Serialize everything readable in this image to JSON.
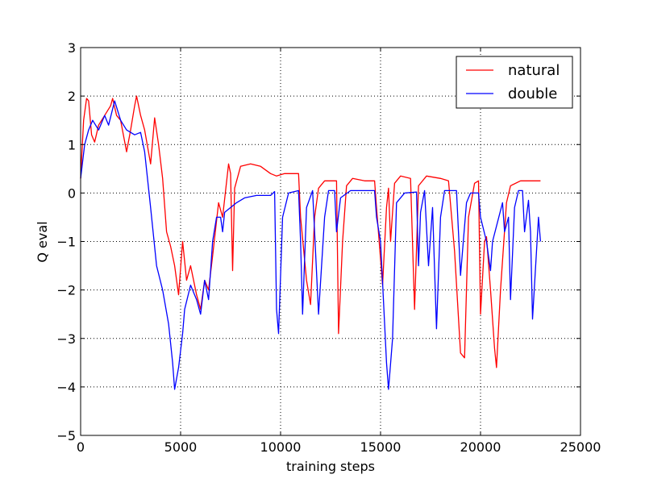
{
  "chart_data": {
    "type": "line",
    "title": "",
    "xlabel": "training steps",
    "ylabel": "Q eval",
    "xlim": [
      0,
      25000
    ],
    "ylim": [
      -5,
      3
    ],
    "xticks": [
      0,
      5000,
      10000,
      15000,
      20000,
      25000
    ],
    "xtick_labels": [
      "0",
      "5000",
      "10000",
      "15000",
      "20000",
      "25000"
    ],
    "yticks": [
      -5,
      -4,
      -3,
      -2,
      -1,
      0,
      1,
      2,
      3
    ],
    "ytick_labels": [
      "−5",
      "−4",
      "−3",
      "−2",
      "−1",
      "0",
      "1",
      "2",
      "3"
    ],
    "grid": true,
    "legend_position": "top-right",
    "series": [
      {
        "name": "natural",
        "color": "#ff0000",
        "x": [
          0,
          150,
          300,
          400,
          550,
          700,
          900,
          1200,
          1500,
          1600,
          1800,
          2000,
          2300,
          2500,
          2700,
          2800,
          3000,
          3200,
          3500,
          3700,
          3900,
          4100,
          4300,
          4500,
          4700,
          4900,
          5100,
          5300,
          5500,
          5800,
          6000,
          6200,
          6400,
          6600,
          6900,
          7100,
          7400,
          7500,
          7600,
          7700,
          8000,
          8500,
          9000,
          9500,
          9800,
          10200,
          10900,
          11000,
          11300,
          11500,
          11700,
          11900,
          12200,
          12800,
          12900,
          13100,
          13300,
          13600,
          14200,
          14700,
          14800,
          15100,
          15300,
          15400,
          15500,
          15700,
          16000,
          16500,
          16700,
          16900,
          17300,
          18000,
          18400,
          18700,
          19000,
          19200,
          19400,
          19700,
          19900,
          20000,
          20200,
          20300,
          20500,
          20700,
          20800,
          21000,
          21300,
          21500,
          22000,
          23000
        ],
        "y": [
          0.3,
          1.5,
          1.95,
          1.9,
          1.2,
          1.05,
          1.4,
          1.6,
          1.8,
          1.95,
          1.6,
          1.5,
          0.85,
          1.3,
          1.8,
          2.0,
          1.6,
          1.3,
          0.6,
          1.55,
          1.0,
          0.3,
          -0.8,
          -1.1,
          -1.5,
          -2.1,
          -1.0,
          -1.8,
          -1.5,
          -2.1,
          -2.4,
          -1.8,
          -2.0,
          -1.3,
          -0.2,
          -0.5,
          0.6,
          0.4,
          -1.6,
          0.1,
          0.55,
          0.6,
          0.55,
          0.4,
          0.35,
          0.4,
          0.4,
          -0.5,
          -1.8,
          -2.3,
          -0.5,
          0.1,
          0.25,
          0.25,
          -2.9,
          -1.0,
          0.15,
          0.3,
          0.25,
          0.25,
          -0.3,
          -1.9,
          -0.3,
          0.1,
          -1.0,
          0.2,
          0.35,
          0.3,
          -2.4,
          0.15,
          0.35,
          0.3,
          0.25,
          -1.2,
          -3.3,
          -3.4,
          -0.5,
          0.2,
          0.25,
          -2.5,
          -1.0,
          -0.9,
          -2.0,
          -3.2,
          -3.6,
          -2.0,
          -0.2,
          0.15,
          0.25,
          0.25
        ]
      },
      {
        "name": "double",
        "color": "#0000ff",
        "x": [
          0,
          200,
          400,
          600,
          900,
          1200,
          1400,
          1700,
          2000,
          2300,
          2700,
          3000,
          3200,
          3500,
          3800,
          4100,
          4400,
          4600,
          4700,
          4900,
          5100,
          5200,
          5500,
          5800,
          6000,
          6200,
          6400,
          6600,
          6800,
          7000,
          7100,
          7200,
          7500,
          7800,
          8200,
          8800,
          9500,
          9700,
          9800,
          9900,
          10100,
          10400,
          10900,
          11000,
          11100,
          11300,
          11600,
          11700,
          11900,
          12200,
          12400,
          12700,
          12800,
          13000,
          13500,
          14700,
          14800,
          15000,
          15300,
          15400,
          15600,
          15800,
          16200,
          16800,
          16900,
          17000,
          17200,
          17400,
          17600,
          17800,
          18000,
          18200,
          18800,
          19000,
          19300,
          19500,
          19900,
          20000,
          20300,
          20500,
          20600,
          21100,
          21200,
          21400,
          21500,
          21700,
          21900,
          22100,
          22200,
          22400,
          22500,
          22600,
          22900,
          23000
        ],
        "y": [
          0.3,
          1.0,
          1.3,
          1.5,
          1.3,
          1.6,
          1.4,
          1.9,
          1.5,
          1.3,
          1.2,
          1.25,
          0.85,
          -0.3,
          -1.5,
          -2.0,
          -2.7,
          -3.5,
          -4.05,
          -3.6,
          -2.9,
          -2.4,
          -1.9,
          -2.2,
          -2.5,
          -1.8,
          -2.2,
          -1.0,
          -0.5,
          -0.5,
          -0.8,
          -0.4,
          -0.3,
          -0.2,
          -0.1,
          -0.05,
          -0.05,
          0.03,
          -2.4,
          -2.9,
          -0.5,
          0.0,
          0.05,
          -1.0,
          -2.5,
          -0.3,
          0.05,
          -0.8,
          -2.5,
          -0.5,
          0.05,
          0.05,
          -0.8,
          -0.1,
          0.05,
          0.05,
          -0.5,
          -1.0,
          -3.5,
          -4.05,
          -3.0,
          -0.2,
          0.0,
          0.02,
          -1.5,
          -0.4,
          0.05,
          -1.5,
          -0.3,
          -2.8,
          -0.5,
          0.05,
          0.05,
          -1.7,
          -0.2,
          0.0,
          0.0,
          -0.5,
          -1.0,
          -1.6,
          -1.0,
          -0.2,
          -0.8,
          -0.5,
          -2.2,
          -0.3,
          0.05,
          0.05,
          -0.8,
          -0.15,
          -0.8,
          -2.6,
          -0.5,
          -1.0
        ]
      }
    ]
  }
}
